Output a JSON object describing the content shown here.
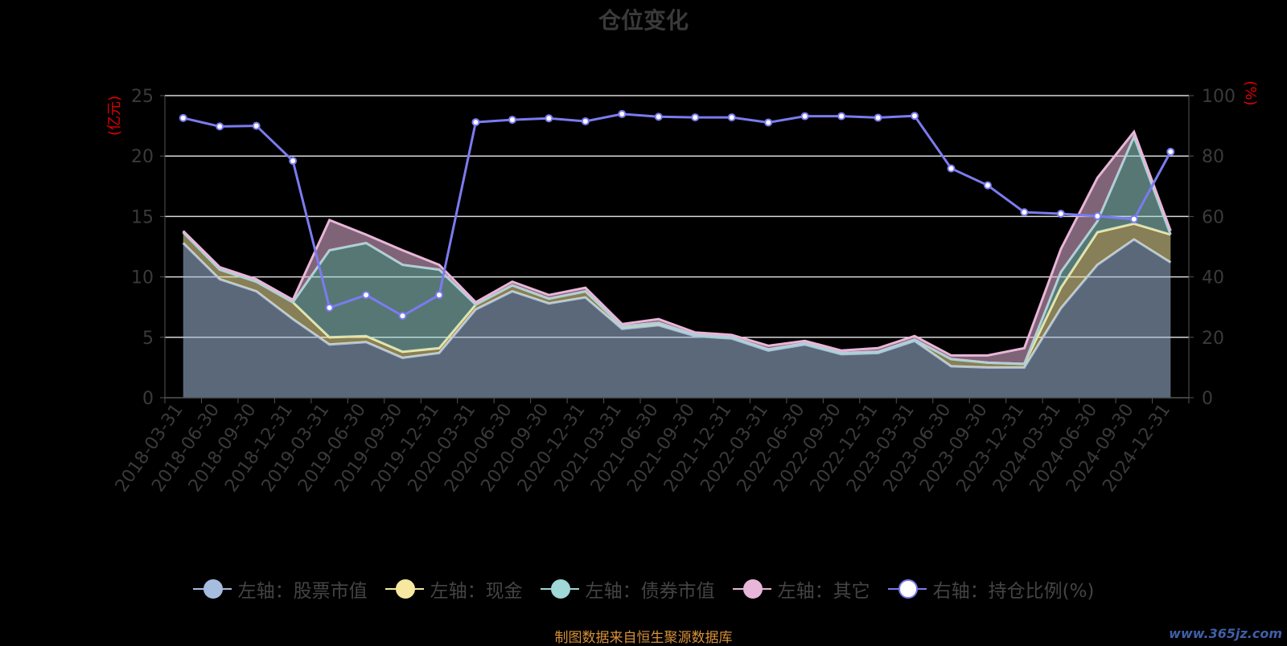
{
  "title": "仓位变化",
  "source_note": "制图数据来自恒生聚源数据库",
  "watermark": "www.365jz.com",
  "chart_data": {
    "type": "area",
    "categories": [
      "2018-03-31",
      "2018-06-30",
      "2018-09-30",
      "2018-12-31",
      "2019-03-31",
      "2019-06-30",
      "2019-09-30",
      "2019-12-31",
      "2020-03-31",
      "2020-06-30",
      "2020-09-30",
      "2020-12-31",
      "2021-03-31",
      "2021-06-30",
      "2021-09-30",
      "2021-12-31",
      "2022-03-31",
      "2022-06-30",
      "2022-09-30",
      "2022-12-31",
      "2023-03-31",
      "2023-06-30",
      "2023-09-30",
      "2023-12-31",
      "2024-03-31",
      "2024-06-30",
      "2024-09-30",
      "2024-12-31"
    ],
    "y_left": {
      "label": "(亿元)",
      "min": 0,
      "max": 25,
      "ticks": [
        0,
        5,
        10,
        15,
        20,
        25
      ]
    },
    "y_right": {
      "label": "(%)",
      "min": 0,
      "max": 100,
      "ticks": [
        0,
        20,
        40,
        60,
        80,
        100
      ]
    },
    "grid": true,
    "legend_position": "bottom",
    "stack": [
      {
        "name": "左轴：股票市值",
        "color": "#a6bddf",
        "values": [
          12.8,
          9.8,
          8.8,
          6.5,
          4.4,
          4.6,
          3.3,
          3.7,
          7.3,
          8.8,
          7.8,
          8.3,
          5.7,
          6.0,
          5.1,
          4.9,
          3.9,
          4.4,
          3.6,
          3.7,
          4.7,
          2.6,
          2.5,
          2.5,
          7.4,
          11.0,
          13.1,
          11.2
        ]
      },
      {
        "name": "左轴：现金",
        "color": "#f6e8a0",
        "values": [
          0.9,
          0.8,
          0.8,
          1.4,
          0.6,
          0.5,
          0.5,
          0.4,
          0.4,
          0.5,
          0.4,
          0.5,
          0.2,
          0.2,
          0.1,
          0.1,
          0.1,
          0.1,
          0.1,
          0.1,
          0.1,
          0.6,
          0.4,
          0.3,
          1.7,
          2.7,
          1.3,
          2.3
        ]
      },
      {
        "name": "左轴：债券市值",
        "color": "#9fd8d6",
        "values": [
          0,
          0,
          0,
          0,
          7.2,
          7.7,
          7.2,
          6.5,
          0,
          0,
          0,
          0,
          0,
          0,
          0,
          0,
          0,
          0,
          0,
          0,
          0,
          0,
          0,
          0,
          1.3,
          0.9,
          7.2,
          0
        ]
      },
      {
        "name": "左轴：其它",
        "color": "#e8b6d8",
        "values": [
          0.1,
          0.2,
          0.2,
          0.2,
          2.5,
          0.7,
          1.2,
          0.4,
          0.2,
          0.3,
          0.3,
          0.3,
          0.2,
          0.3,
          0.2,
          0.2,
          0.3,
          0.2,
          0.2,
          0.3,
          0.3,
          0.3,
          0.6,
          1.3,
          1.9,
          3.6,
          0.4,
          0.3
        ]
      }
    ],
    "line": {
      "name": "右轴：持仓比例(%)",
      "color": "#7b7bf0",
      "values": [
        92.6,
        89.8,
        90.0,
        78.4,
        29.8,
        34.0,
        27.1,
        34.0,
        91.2,
        92.0,
        92.5,
        91.5,
        93.9,
        93.0,
        92.8,
        92.8,
        91.1,
        93.2,
        93.2,
        92.7,
        93.3,
        75.9,
        70.3,
        61.4,
        60.9,
        60.1,
        59.1,
        81.4
      ]
    }
  }
}
